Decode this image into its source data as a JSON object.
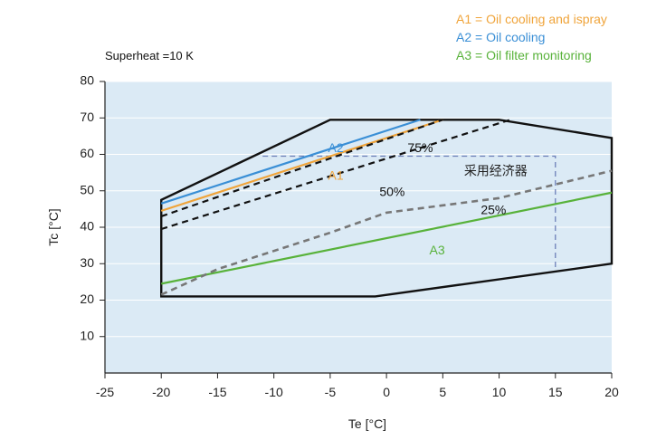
{
  "chart_data": {
    "type": "line",
    "note": "Superheat =10 K",
    "xlabel": "Te [°C]",
    "ylabel": "Tc [°C]",
    "xlim": [
      -25,
      20
    ],
    "ylim": [
      0,
      80
    ],
    "xticks": [
      -25,
      -20,
      -15,
      -10,
      -5,
      0,
      5,
      10,
      15,
      20
    ],
    "yticks": [
      10,
      20,
      30,
      40,
      50,
      60,
      70,
      80
    ],
    "legend_position": "top-right",
    "legend": [
      {
        "text": "A1 = Oil cooling and ispray",
        "color": "#f0a43a"
      },
      {
        "text": "A2 = Oil cooling",
        "color": "#3a8fd6"
      },
      {
        "text": "A3 = Oil filter monitoring",
        "color": "#58b23a"
      }
    ],
    "background_color": "#dbeaf5",
    "envelope": {
      "color": "#111111",
      "points": [
        [
          -20,
          21
        ],
        [
          -1,
          21
        ],
        [
          20,
          30
        ],
        [
          20,
          64.5
        ],
        [
          10,
          69.5
        ],
        [
          -5,
          69.5
        ],
        [
          -20,
          47.5
        ]
      ]
    },
    "economizer_region": {
      "label": "采用经济器",
      "color": "#6d7fb8",
      "points": [
        [
          -11,
          59.5
        ],
        [
          15,
          59.5
        ],
        [
          15,
          28.5
        ]
      ]
    },
    "series": [
      {
        "name": "A2",
        "color": "#3a8fd6",
        "style": "solid",
        "x": [
          -20,
          3
        ],
        "y": [
          46.5,
          69.5
        ]
      },
      {
        "name": "A1",
        "color": "#f0a43a",
        "style": "solid",
        "x": [
          -20,
          5
        ],
        "y": [
          44.5,
          69.5
        ]
      },
      {
        "name": "A3",
        "color": "#58b23a",
        "style": "solid",
        "x": [
          -20,
          20
        ],
        "y": [
          24.5,
          49.5
        ]
      },
      {
        "name": "75%",
        "color": "#111111",
        "style": "dash",
        "x": [
          -20,
          5
        ],
        "y": [
          43,
          69.5
        ]
      },
      {
        "name": "50%",
        "color": "#111111",
        "style": "dash",
        "x": [
          -20,
          11
        ],
        "y": [
          39.5,
          69.5
        ]
      },
      {
        "name": "25%",
        "color": "#777777",
        "style": "dash",
        "x": [
          -20,
          -15,
          -5,
          0,
          10,
          20
        ],
        "y": [
          21.5,
          28.5,
          38.5,
          44,
          48,
          55.5
        ]
      }
    ],
    "labels": [
      {
        "text": "A2",
        "x": -4.5,
        "y": 61.5,
        "color": "#3a8fd6"
      },
      {
        "text": "A1",
        "x": -4.5,
        "y": 54,
        "color": "#f0a43a"
      },
      {
        "text": "75%",
        "x": 3,
        "y": 61.5,
        "color": "#111111"
      },
      {
        "text": "50%",
        "x": 0.5,
        "y": 49.5,
        "color": "#111111"
      },
      {
        "text": "25%",
        "x": 9.5,
        "y": 44.5,
        "color": "#111111"
      },
      {
        "text": "A3",
        "x": 4.5,
        "y": 33.5,
        "color": "#58b23a"
      }
    ]
  }
}
